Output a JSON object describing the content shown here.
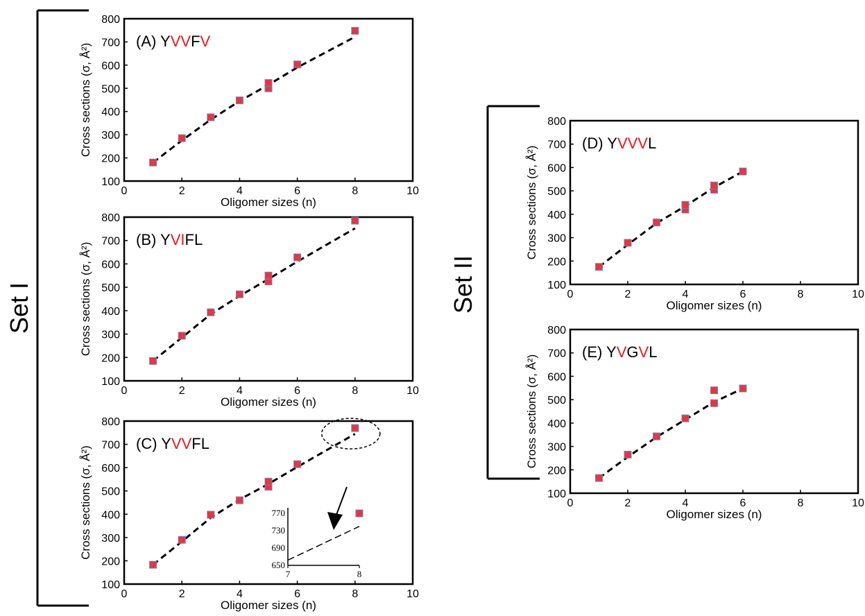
{
  "sets": [
    {
      "label": "Set I"
    },
    {
      "label": "Set II"
    }
  ],
  "colors": {
    "marker_fill": "#e0393e",
    "marker_edge": "#7a7fc2",
    "highlight": "#e8191e",
    "fit_line": "#000000"
  },
  "chart_data": [
    {
      "type": "scatter",
      "panel": "(A)",
      "title_parts": [
        {
          "text": "(A) Y",
          "highlight": false
        },
        {
          "text": "VV",
          "highlight": true
        },
        {
          "text": "F",
          "highlight": false
        },
        {
          "text": "V",
          "highlight": true
        }
      ],
      "xlabel": "Oligomer sizes (n)",
      "ylabel": "Cross sections (σ, Å²)",
      "xlim": [
        0,
        10
      ],
      "ylim": [
        100,
        800
      ],
      "xticks": [
        "0",
        "2",
        "4",
        "6",
        "8",
        "10"
      ],
      "yticks": [
        "100",
        "200",
        "300",
        "400",
        "500",
        "600",
        "700",
        "800"
      ],
      "points": [
        [
          1,
          180
        ],
        [
          2,
          285
        ],
        [
          3,
          375
        ],
        [
          4,
          448
        ],
        [
          5,
          500
        ],
        [
          5,
          523
        ],
        [
          6,
          603
        ],
        [
          8,
          748
        ]
      ],
      "fit_line": {
        "style": "dashed",
        "points": [
          [
            1,
            180
          ],
          [
            2,
            275
          ],
          [
            3,
            365
          ],
          [
            4,
            445
          ],
          [
            5,
            515
          ],
          [
            6,
            590
          ],
          [
            8,
            722
          ]
        ]
      }
    },
    {
      "type": "scatter",
      "panel": "(B)",
      "title_parts": [
        {
          "text": "(B) Y",
          "highlight": false
        },
        {
          "text": "VI",
          "highlight": true
        },
        {
          "text": "FL",
          "highlight": false
        }
      ],
      "xlabel": "Oligomer sizes (n)",
      "ylabel": "Cross sections (σ, Å²)",
      "xlim": [
        0,
        10
      ],
      "ylim": [
        100,
        800
      ],
      "xticks": [
        "0",
        "2",
        "4",
        "6",
        "8",
        "10"
      ],
      "yticks": [
        "100",
        "200",
        "300",
        "400",
        "500",
        "600",
        "700",
        "800"
      ],
      "points": [
        [
          1,
          185
        ],
        [
          2,
          293
        ],
        [
          3,
          393
        ],
        [
          4,
          470
        ],
        [
          5,
          525
        ],
        [
          5,
          550
        ],
        [
          6,
          628
        ],
        [
          8,
          785
        ]
      ],
      "fit_line": {
        "style": "dashed",
        "points": [
          [
            1,
            185
          ],
          [
            2,
            285
          ],
          [
            3,
            385
          ],
          [
            4,
            463
          ],
          [
            5,
            535
          ],
          [
            6,
            610
          ],
          [
            8,
            752
          ]
        ]
      }
    },
    {
      "type": "scatter",
      "panel": "(C)",
      "title_parts": [
        {
          "text": "(C) Y",
          "highlight": false
        },
        {
          "text": "VV",
          "highlight": true
        },
        {
          "text": "FL",
          "highlight": false
        }
      ],
      "xlabel": "Oligomer sizes (n)",
      "ylabel": "Cross sections (σ, Å²)",
      "xlim": [
        0,
        10
      ],
      "ylim": [
        100,
        800
      ],
      "xticks": [
        "0",
        "2",
        "4",
        "6",
        "8",
        "10"
      ],
      "yticks": [
        "100",
        "200",
        "300",
        "400",
        "500",
        "600",
        "700",
        "800"
      ],
      "points": [
        [
          1,
          183
        ],
        [
          2,
          290
        ],
        [
          3,
          398
        ],
        [
          4,
          460
        ],
        [
          5,
          518
        ],
        [
          5,
          540
        ],
        [
          6,
          615
        ],
        [
          8,
          770
        ]
      ],
      "fit_line": {
        "style": "dashed",
        "points": [
          [
            1,
            183
          ],
          [
            2,
            283
          ],
          [
            3,
            385
          ],
          [
            4,
            463
          ],
          [
            5,
            530
          ],
          [
            6,
            603
          ],
          [
            8,
            745
          ]
        ]
      },
      "inset": {
        "xlim": [
          7,
          8
        ],
        "ylim": [
          650,
          770
        ],
        "xticks": [
          "7",
          "8"
        ],
        "yticks": [
          "770",
          "730",
          "690",
          "650"
        ],
        "points": [
          [
            8,
            770
          ]
        ],
        "fit_line": [
          [
            7,
            662
          ],
          [
            8,
            740
          ]
        ]
      }
    },
    {
      "type": "scatter",
      "panel": "(D)",
      "title_parts": [
        {
          "text": "(D) Y",
          "highlight": false
        },
        {
          "text": "VVV",
          "highlight": true
        },
        {
          "text": "L",
          "highlight": false
        }
      ],
      "xlabel": "Oligomer sizes (n)",
      "ylabel": "Cross sections (σ, Å²)",
      "xlim": [
        0,
        10
      ],
      "ylim": [
        100,
        800
      ],
      "xticks": [
        "0",
        "2",
        "4",
        "6",
        "8",
        "10"
      ],
      "yticks": [
        "100",
        "200",
        "300",
        "400",
        "500",
        "600",
        "700",
        "800"
      ],
      "points": [
        [
          1,
          175
        ],
        [
          2,
          278
        ],
        [
          3,
          365
        ],
        [
          4,
          420
        ],
        [
          4,
          440
        ],
        [
          5,
          505
        ],
        [
          5,
          523
        ],
        [
          6,
          583
        ]
      ],
      "fit_line": {
        "style": "dashed",
        "points": [
          [
            1,
            175
          ],
          [
            2,
            270
          ],
          [
            3,
            362
          ],
          [
            4,
            435
          ],
          [
            5,
            515
          ],
          [
            6,
            583
          ]
        ]
      }
    },
    {
      "type": "scatter",
      "panel": "(E)",
      "title_parts": [
        {
          "text": "(E) Y",
          "highlight": false
        },
        {
          "text": "V",
          "highlight": true
        },
        {
          "text": "G",
          "highlight": false
        },
        {
          "text": "V",
          "highlight": true
        },
        {
          "text": "L",
          "highlight": false
        }
      ],
      "xlabel": "Oligomer sizes (n)",
      "ylabel": "Cross sections (σ, Å²)",
      "xlim": [
        0,
        10
      ],
      "ylim": [
        100,
        800
      ],
      "xticks": [
        "0",
        "2",
        "4",
        "6",
        "8",
        "10"
      ],
      "yticks": [
        "100",
        "200",
        "300",
        "400",
        "500",
        "600",
        "700",
        "800"
      ],
      "points": [
        [
          1,
          165
        ],
        [
          2,
          265
        ],
        [
          3,
          343
        ],
        [
          4,
          420
        ],
        [
          5,
          485
        ],
        [
          5,
          540
        ],
        [
          6,
          548
        ]
      ],
      "fit_line": {
        "style": "dashed",
        "points": [
          [
            1,
            165
          ],
          [
            2,
            255
          ],
          [
            3,
            340
          ],
          [
            4,
            415
          ],
          [
            5,
            490
          ],
          [
            6,
            548
          ]
        ]
      }
    }
  ]
}
